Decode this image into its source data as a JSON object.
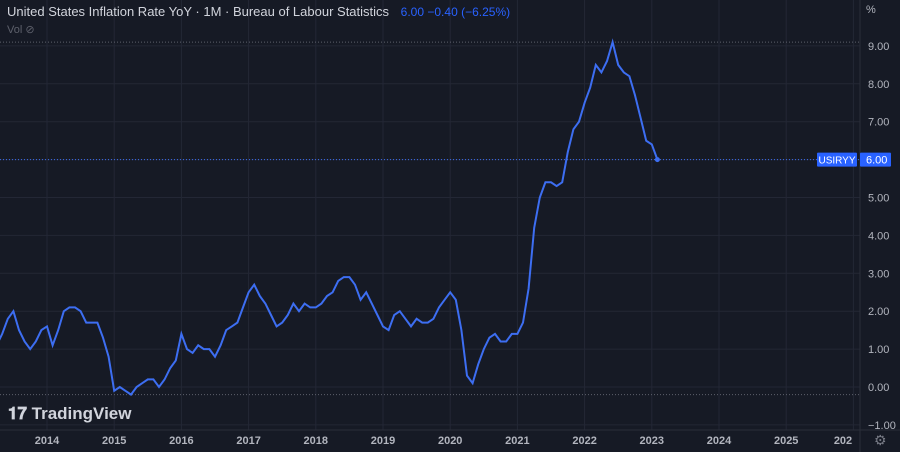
{
  "header": {
    "title": "United States Inflation Rate YoY · 1M · Bureau of Labour Statistics",
    "last": "6.00",
    "change": "−0.40",
    "change_pct": "(−6.25%)",
    "vol_label": "Vol",
    "vol_icon": "eye-crossed-icon"
  },
  "logo": {
    "text": "TradingView"
  },
  "colors": {
    "line": "#3d6ef2",
    "bg": "#161a25",
    "grid": "#232735",
    "label_bg": "#2962ff"
  },
  "chart_data": {
    "type": "line",
    "title": "United States Inflation Rate YoY",
    "unit_label": "%",
    "series_label": "USIRYY",
    "last_value_label": "6.00",
    "start": "2013-01",
    "frequency": "monthly",
    "values": [
      1.6,
      2.0,
      1.5,
      1.1,
      1.4,
      1.8,
      2.0,
      1.5,
      1.2,
      1.0,
      1.2,
      1.5,
      1.6,
      1.1,
      1.5,
      2.0,
      2.1,
      2.1,
      2.0,
      1.7,
      1.7,
      1.7,
      1.3,
      0.8,
      -0.1,
      0.0,
      -0.1,
      -0.2,
      0.0,
      0.1,
      0.2,
      0.2,
      0.0,
      0.2,
      0.5,
      0.7,
      1.4,
      1.0,
      0.9,
      1.1,
      1.0,
      1.0,
      0.8,
      1.1,
      1.5,
      1.6,
      1.7,
      2.1,
      2.5,
      2.7,
      2.4,
      2.2,
      1.9,
      1.6,
      1.7,
      1.9,
      2.2,
      2.0,
      2.2,
      2.1,
      2.1,
      2.2,
      2.4,
      2.5,
      2.8,
      2.9,
      2.9,
      2.7,
      2.3,
      2.5,
      2.2,
      1.9,
      1.6,
      1.5,
      1.9,
      2.0,
      1.8,
      1.6,
      1.8,
      1.7,
      1.7,
      1.8,
      2.1,
      2.3,
      2.5,
      2.3,
      1.5,
      0.3,
      0.1,
      0.6,
      1.0,
      1.3,
      1.4,
      1.2,
      1.2,
      1.4,
      1.4,
      1.7,
      2.6,
      4.2,
      5.0,
      5.4,
      5.4,
      5.3,
      5.4,
      6.2,
      6.8,
      7.0,
      7.5,
      7.9,
      8.5,
      8.3,
      8.6,
      9.1,
      8.5,
      8.3,
      8.2,
      7.7,
      7.1,
      6.5,
      6.4,
      6.0
    ],
    "x_ticks": [
      "2014",
      "2015",
      "2016",
      "2017",
      "2018",
      "2019",
      "2020",
      "2021",
      "2022",
      "2023",
      "2024",
      "2025",
      "202"
    ],
    "y_ticks": [
      "9.00",
      "8.00",
      "7.00",
      "6.00",
      "5.00",
      "4.00",
      "3.00",
      "2.00",
      "1.00",
      "0.00",
      "−1.00"
    ],
    "ylim": [
      -1.1,
      9.9
    ],
    "grid": true
  }
}
